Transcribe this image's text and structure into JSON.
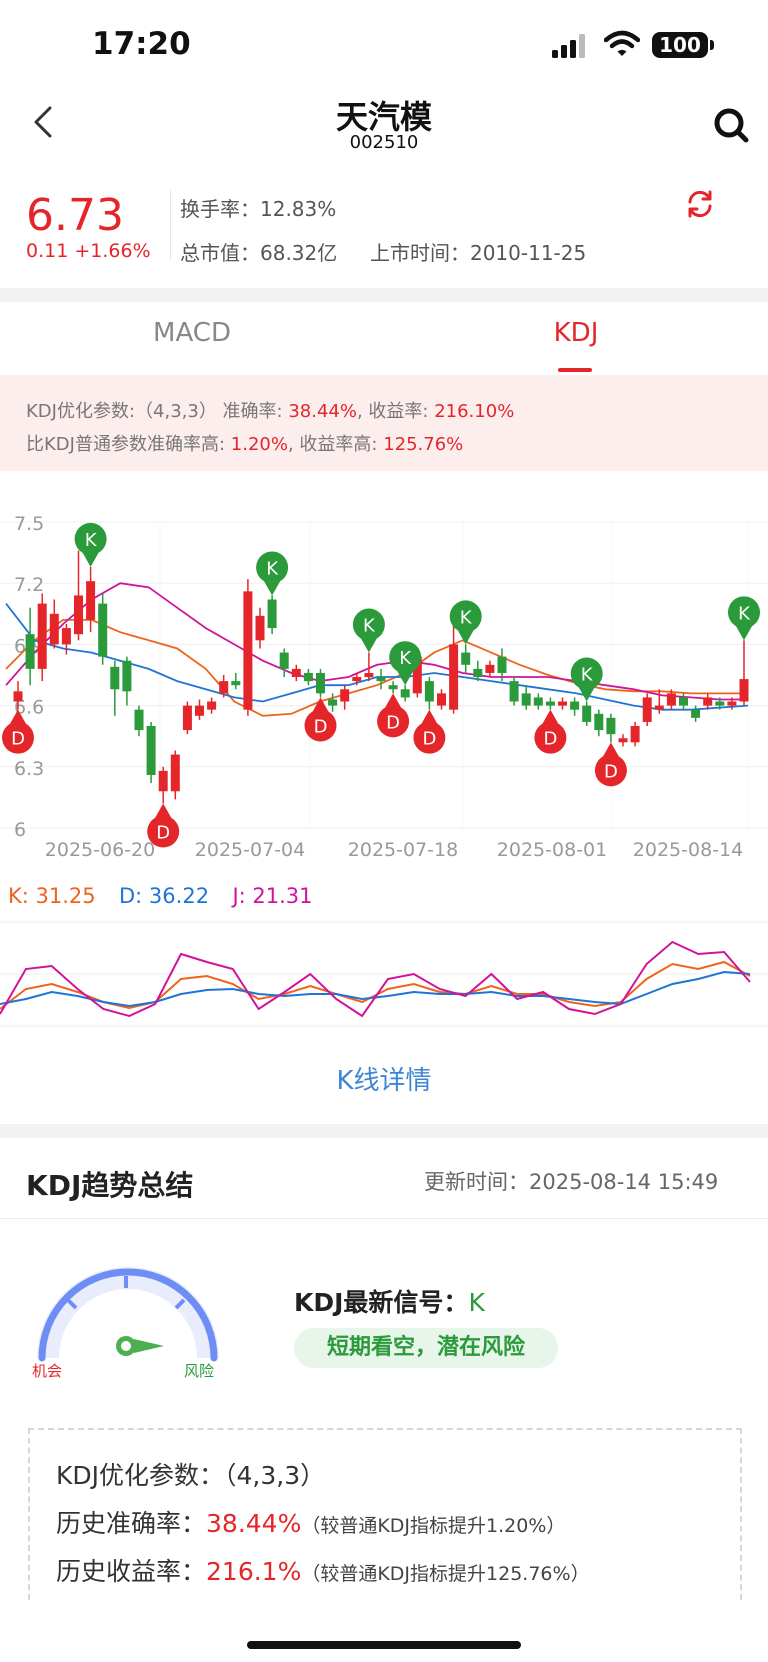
{
  "status_bar": {
    "time": "17:20",
    "battery": "100"
  },
  "header": {
    "title": "天汽模",
    "code": "002510"
  },
  "quote": {
    "price": "6.73",
    "change": "0.11 +1.66%",
    "turnover_label": "换手率：",
    "turnover": "12.83%",
    "mktcap_label": "总市值：",
    "mktcap": "68.32亿",
    "listing_label": "上市时间：",
    "listing": "2010-11-25"
  },
  "tabs": [
    {
      "label": "MACD",
      "active": false
    },
    {
      "label": "KDJ",
      "active": true
    }
  ],
  "notice": {
    "l1_a": "KDJ优化参数:（4,3,3） 准确率: ",
    "l1_acc": "38.44%",
    "l1_b": ", 收益率: ",
    "l1_ret": "216.10%",
    "l2_a": "比KDJ普通参数准确率高: ",
    "l2_acc": "1.20%",
    "l2_b": ", 收益率高: ",
    "l2_ret": "125.76%"
  },
  "chart_data": [
    {
      "type": "candlestick",
      "ylim": [
        6,
        7.5
      ],
      "y_ticks": [
        "7.5",
        "7.2",
        "6.9",
        "6.6",
        "6.3",
        "6"
      ],
      "x_ticks": [
        "2025-06-20",
        "2025-07-04",
        "2025-07-18",
        "2025-08-01",
        "2025-08-14"
      ],
      "candles": [
        {
          "o": 6.62,
          "c": 6.67,
          "h": 6.72,
          "l": 6.58
        },
        {
          "o": 6.95,
          "c": 6.78,
          "h": 7.08,
          "l": 6.7
        },
        {
          "o": 6.78,
          "c": 7.1,
          "h": 7.15,
          "l": 6.72
        },
        {
          "o": 6.9,
          "c": 7.05,
          "h": 7.12,
          "l": 6.88
        },
        {
          "o": 6.9,
          "c": 6.98,
          "h": 7.0,
          "l": 6.85
        },
        {
          "o": 6.95,
          "c": 7.14,
          "h": 7.36,
          "l": 6.92
        },
        {
          "o": 7.02,
          "c": 7.21,
          "h": 7.28,
          "l": 6.96
        },
        {
          "o": 7.1,
          "c": 6.84,
          "h": 7.15,
          "l": 6.8
        },
        {
          "o": 6.79,
          "c": 6.68,
          "h": 6.82,
          "l": 6.55
        },
        {
          "o": 6.82,
          "c": 6.67,
          "h": 6.84,
          "l": 6.6
        },
        {
          "o": 6.58,
          "c": 6.48,
          "h": 6.6,
          "l": 6.45
        },
        {
          "o": 6.5,
          "c": 6.26,
          "h": 6.52,
          "l": 6.22
        },
        {
          "o": 6.18,
          "c": 6.28,
          "h": 6.3,
          "l": 6.12
        },
        {
          "o": 6.18,
          "c": 6.36,
          "h": 6.38,
          "l": 6.14
        },
        {
          "o": 6.48,
          "c": 6.6,
          "h": 6.62,
          "l": 6.46
        },
        {
          "o": 6.55,
          "c": 6.6,
          "h": 6.63,
          "l": 6.53
        },
        {
          "o": 6.58,
          "c": 6.62,
          "h": 6.64,
          "l": 6.56
        },
        {
          "o": 6.66,
          "c": 6.72,
          "h": 6.75,
          "l": 6.64
        },
        {
          "o": 6.72,
          "c": 6.7,
          "h": 6.76,
          "l": 6.68
        },
        {
          "o": 6.58,
          "c": 7.16,
          "h": 7.22,
          "l": 6.55
        },
        {
          "o": 6.92,
          "c": 7.04,
          "h": 7.08,
          "l": 6.88
        },
        {
          "o": 7.12,
          "c": 6.98,
          "h": 7.14,
          "l": 6.95
        },
        {
          "o": 6.86,
          "c": 6.78,
          "h": 6.88,
          "l": 6.74
        },
        {
          "o": 6.74,
          "c": 6.78,
          "h": 6.8,
          "l": 6.72
        },
        {
          "o": 6.76,
          "c": 6.72,
          "h": 6.78,
          "l": 6.7
        },
        {
          "o": 6.76,
          "c": 6.66,
          "h": 6.78,
          "l": 6.64
        },
        {
          "o": 6.63,
          "c": 6.6,
          "h": 6.66,
          "l": 6.57
        },
        {
          "o": 6.62,
          "c": 6.68,
          "h": 6.7,
          "l": 6.58
        },
        {
          "o": 6.72,
          "c": 6.74,
          "h": 6.76,
          "l": 6.7
        },
        {
          "o": 6.74,
          "c": 6.76,
          "h": 6.86,
          "l": 6.72
        },
        {
          "o": 6.74,
          "c": 6.72,
          "h": 6.78,
          "l": 6.68
        },
        {
          "o": 6.7,
          "c": 6.68,
          "h": 6.72,
          "l": 6.66
        },
        {
          "o": 6.68,
          "c": 6.64,
          "h": 6.7,
          "l": 6.62
        },
        {
          "o": 6.66,
          "c": 6.84,
          "h": 6.88,
          "l": 6.64
        },
        {
          "o": 6.72,
          "c": 6.62,
          "h": 6.74,
          "l": 6.58
        },
        {
          "o": 6.6,
          "c": 6.66,
          "h": 6.68,
          "l": 6.58
        },
        {
          "o": 6.58,
          "c": 6.9,
          "h": 7.0,
          "l": 6.56
        },
        {
          "o": 6.86,
          "c": 6.8,
          "h": 6.9,
          "l": 6.76
        },
        {
          "o": 6.78,
          "c": 6.74,
          "h": 6.82,
          "l": 6.72
        },
        {
          "o": 6.76,
          "c": 6.8,
          "h": 6.82,
          "l": 6.74
        },
        {
          "o": 6.84,
          "c": 6.76,
          "h": 6.88,
          "l": 6.72
        },
        {
          "o": 6.72,
          "c": 6.62,
          "h": 6.74,
          "l": 6.6
        },
        {
          "o": 6.66,
          "c": 6.6,
          "h": 6.7,
          "l": 6.58
        },
        {
          "o": 6.64,
          "c": 6.6,
          "h": 6.66,
          "l": 6.58
        },
        {
          "o": 6.62,
          "c": 6.6,
          "h": 6.64,
          "l": 6.58
        },
        {
          "o": 6.6,
          "c": 6.62,
          "h": 6.64,
          "l": 6.58
        },
        {
          "o": 6.62,
          "c": 6.58,
          "h": 6.64,
          "l": 6.55
        },
        {
          "o": 6.6,
          "c": 6.52,
          "h": 6.62,
          "l": 6.5
        },
        {
          "o": 6.56,
          "c": 6.48,
          "h": 6.58,
          "l": 6.45
        },
        {
          "o": 6.54,
          "c": 6.46,
          "h": 6.56,
          "l": 6.42
        },
        {
          "o": 6.42,
          "c": 6.44,
          "h": 6.46,
          "l": 6.4
        },
        {
          "o": 6.42,
          "c": 6.5,
          "h": 6.52,
          "l": 6.4
        },
        {
          "o": 6.52,
          "c": 6.64,
          "h": 6.66,
          "l": 6.5
        },
        {
          "o": 6.58,
          "c": 6.6,
          "h": 6.68,
          "l": 6.56
        },
        {
          "o": 6.6,
          "c": 6.66,
          "h": 6.68,
          "l": 6.58
        },
        {
          "o": 6.64,
          "c": 6.6,
          "h": 6.66,
          "l": 6.58
        },
        {
          "o": 6.58,
          "c": 6.54,
          "h": 6.6,
          "l": 6.52
        },
        {
          "o": 6.6,
          "c": 6.64,
          "h": 6.66,
          "l": 6.58
        },
        {
          "o": 6.62,
          "c": 6.6,
          "h": 6.64,
          "l": 6.58
        },
        {
          "o": 6.6,
          "c": 6.62,
          "h": 6.64,
          "l": 6.58
        },
        {
          "o": 6.62,
          "c": 6.73,
          "h": 6.92,
          "l": 6.6
        }
      ],
      "overlay_lines": [
        {
          "color": "#f0631b",
          "values": [
            6.78,
            6.92,
            7.02,
            7.02,
            6.96,
            6.92,
            6.88,
            6.78,
            6.62,
            6.55,
            6.56,
            6.62,
            6.66,
            6.7,
            6.76,
            6.86,
            6.92,
            6.86,
            6.8,
            6.75,
            6.71,
            6.68,
            6.67,
            6.67,
            6.66,
            6.66,
            6.66
          ]
        },
        {
          "color": "#1f74d6",
          "values": [
            7.1,
            6.92,
            6.88,
            6.86,
            6.82,
            6.78,
            6.72,
            6.68,
            6.64,
            6.62,
            6.66,
            6.7,
            6.7,
            6.74,
            6.74,
            6.76,
            6.74,
            6.72,
            6.7,
            6.68,
            6.66,
            6.63,
            6.6,
            6.58,
            6.58,
            6.59,
            6.6
          ]
        },
        {
          "color": "#d0139b",
          "values": [
            6.7,
            6.86,
            7.0,
            7.12,
            7.2,
            7.18,
            7.08,
            6.98,
            6.9,
            6.82,
            6.76,
            6.72,
            6.74,
            6.8,
            6.82,
            6.8,
            6.76,
            6.74,
            6.74,
            6.74,
            6.72,
            6.7,
            6.68,
            6.65,
            6.64,
            6.63,
            6.63
          ]
        }
      ],
      "signals": [
        {
          "label": "D",
          "i": 0
        },
        {
          "label": "K",
          "i": 6
        },
        {
          "label": "D",
          "i": 12
        },
        {
          "label": "K",
          "i": 21
        },
        {
          "label": "D",
          "i": 25
        },
        {
          "label": "K",
          "i": 29
        },
        {
          "label": "D",
          "i": 31
        },
        {
          "label": "K",
          "i": 32
        },
        {
          "label": "D",
          "i": 34
        },
        {
          "label": "K",
          "i": 37
        },
        {
          "label": "D",
          "i": 44
        },
        {
          "label": "K",
          "i": 47
        },
        {
          "label": "D",
          "i": 49
        },
        {
          "label": "K",
          "i": 60
        }
      ]
    },
    {
      "type": "line",
      "series": [
        {
          "name": "K",
          "color": "#f0631b",
          "values": [
            0.15,
            0.35,
            0.4,
            0.32,
            0.22,
            0.16,
            0.22,
            0.45,
            0.48,
            0.4,
            0.25,
            0.3,
            0.38,
            0.3,
            0.22,
            0.35,
            0.4,
            0.32,
            0.3,
            0.38,
            0.3,
            0.3,
            0.22,
            0.18,
            0.22,
            0.45,
            0.6,
            0.55,
            0.62,
            0.48
          ]
        },
        {
          "name": "D",
          "color": "#1f74d6",
          "values": [
            0.2,
            0.25,
            0.32,
            0.28,
            0.22,
            0.18,
            0.22,
            0.3,
            0.34,
            0.35,
            0.3,
            0.28,
            0.3,
            0.3,
            0.25,
            0.28,
            0.32,
            0.3,
            0.3,
            0.32,
            0.28,
            0.28,
            0.25,
            0.22,
            0.2,
            0.3,
            0.4,
            0.45,
            0.52,
            0.5
          ]
        },
        {
          "name": "J",
          "color": "#d0139b",
          "values": [
            0.1,
            0.55,
            0.58,
            0.35,
            0.15,
            0.08,
            0.2,
            0.7,
            0.62,
            0.55,
            0.15,
            0.32,
            0.5,
            0.25,
            0.08,
            0.45,
            0.5,
            0.35,
            0.28,
            0.5,
            0.25,
            0.32,
            0.15,
            0.1,
            0.2,
            0.6,
            0.82,
            0.7,
            0.72,
            0.42
          ]
        }
      ]
    }
  ],
  "kdj_legend": {
    "k": "K: 31.25",
    "d": "D: 36.22",
    "j": "J: 21.31"
  },
  "kline_link": "K线详情",
  "summary": {
    "title": "KDJ趋势总结",
    "update_label": "更新时间：",
    "update_time": "2025-08-14 15:49",
    "gauge_left": "机会",
    "gauge_right": "风险",
    "signal_label": "KDJ最新信号：",
    "signal_value": "K",
    "badge": "短期看空，潜在风险"
  },
  "params": {
    "l1_label": "KDJ优化参数：",
    "l1_value": "（4,3,3）",
    "l2_label": "历史准确率：",
    "l2_value": "38.44%",
    "l2_note": "（较普通KDJ指标提升1.20%）",
    "l3_label": "历史收益率：",
    "l3_value": "216.1%",
    "l3_note": "（较普通KDJ指标提升125.76%）"
  }
}
